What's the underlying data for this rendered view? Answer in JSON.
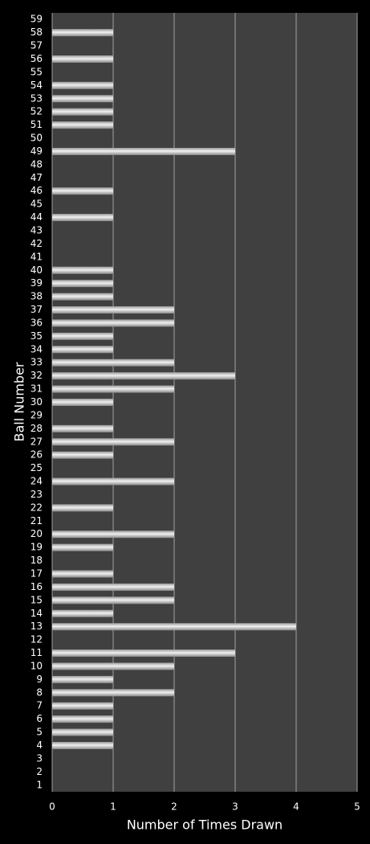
{
  "chart_data": {
    "type": "bar",
    "orientation": "horizontal",
    "x_label": "Number of Times Drawn",
    "y_label": "Ball Number",
    "categories": [
      "1",
      "2",
      "3",
      "4",
      "5",
      "6",
      "7",
      "8",
      "9",
      "10",
      "11",
      "12",
      "13",
      "14",
      "15",
      "16",
      "17",
      "18",
      "19",
      "20",
      "21",
      "22",
      "23",
      "24",
      "25",
      "26",
      "27",
      "28",
      "29",
      "30",
      "31",
      "32",
      "33",
      "34",
      "35",
      "36",
      "37",
      "38",
      "39",
      "40",
      "41",
      "42",
      "43",
      "44",
      "45",
      "46",
      "47",
      "48",
      "49",
      "50",
      "51",
      "52",
      "53",
      "54",
      "55",
      "56",
      "57",
      "58",
      "59"
    ],
    "values": [
      0,
      0,
      0,
      1,
      1,
      1,
      1,
      2,
      1,
      2,
      3,
      0,
      4,
      1,
      2,
      2,
      1,
      0,
      1,
      2,
      0,
      1,
      0,
      2,
      0,
      1,
      2,
      1,
      0,
      1,
      2,
      3,
      2,
      1,
      1,
      2,
      2,
      1,
      1,
      1,
      0,
      0,
      0,
      1,
      0,
      1,
      0,
      0,
      3,
      0,
      1,
      1,
      1,
      1,
      0,
      1,
      0,
      1,
      0
    ],
    "color": "#f0f0f0",
    "xlim": [
      0,
      5
    ],
    "xticks": [
      0,
      1,
      2,
      3,
      4,
      5
    ],
    "grid": true
  }
}
